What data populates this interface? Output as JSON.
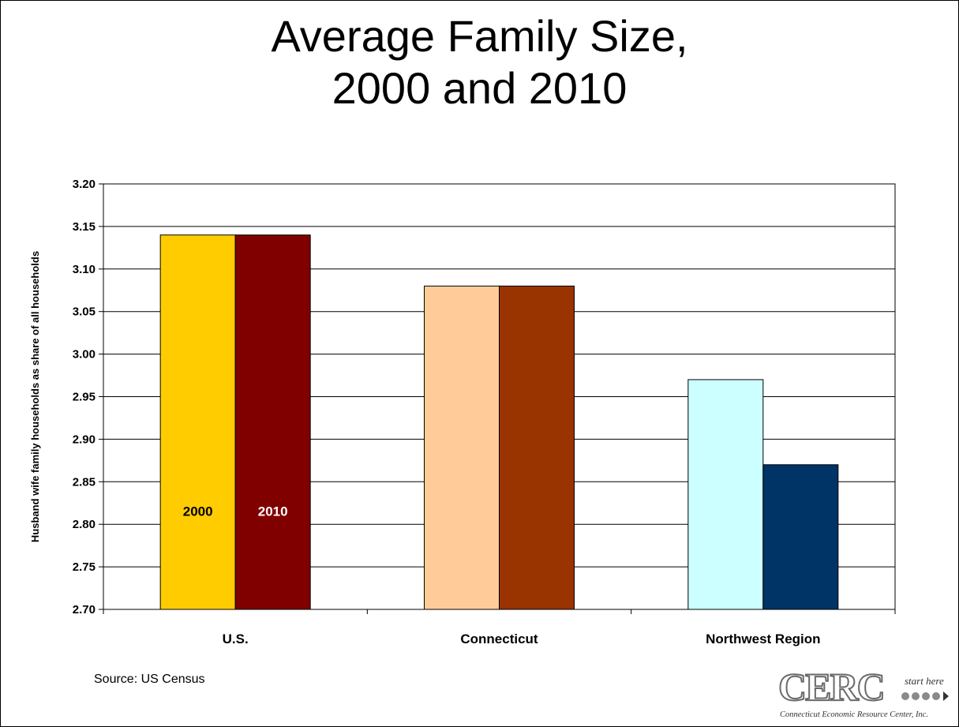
{
  "title": {
    "line1": "Average Family Size,",
    "line2": "2000 and 2010"
  },
  "source": "Source:  US Census",
  "logo": {
    "letters": "CERC",
    "tagline": "start here",
    "company": "Connecticut Economic Resource Center, Inc."
  },
  "chart_data": {
    "type": "bar",
    "title": "Average Family Size, 2000 and 2010",
    "ylabel": "Husband wife family households as share of all households",
    "xlabel": "",
    "ylim": [
      2.7,
      3.2
    ],
    "yticks": [
      "2.70",
      "2.75",
      "2.80",
      "2.85",
      "2.90",
      "2.95",
      "3.00",
      "3.05",
      "3.10",
      "3.15",
      "3.20"
    ],
    "grid": true,
    "categories": [
      "U.S.",
      "Connecticut",
      "Northwest Region"
    ],
    "series": [
      {
        "name": "2000",
        "values": [
          3.14,
          3.08,
          2.97
        ]
      },
      {
        "name": "2010",
        "values": [
          3.14,
          3.08,
          2.87
        ]
      }
    ],
    "bar_colors": [
      [
        "#FFCC00",
        "#800000"
      ],
      [
        "#FFCC99",
        "#993300"
      ],
      [
        "#CCFFFF",
        "#003366"
      ]
    ],
    "in_bar_labels": [
      {
        "category": "U.S.",
        "series": 0,
        "text": "2000",
        "value_at": 2.81,
        "color": "#000000"
      },
      {
        "category": "U.S.",
        "series": 1,
        "text": "2010",
        "value_at": 2.81,
        "color": "#FFFFFF"
      }
    ]
  }
}
